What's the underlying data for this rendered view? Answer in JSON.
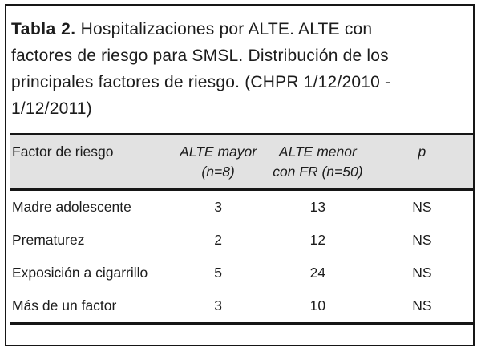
{
  "title": {
    "label": "Tabla 2.",
    "lines": [
      " Hospitalizaciones por ALTE. ALTE con",
      "factores de riesgo para SMSL. Distribución de los",
      "principales factores de riesgo. (CHPR 1/12/2010 -",
      "1/12/2011)"
    ]
  },
  "table": {
    "columns": [
      {
        "line1": "Factor de riesgo",
        "line2": ""
      },
      {
        "line1": "ALTE mayor",
        "line2": "(n=8)"
      },
      {
        "line1": "ALTE menor",
        "line2": "con FR (n=50)"
      },
      {
        "line1": "p",
        "line2": ""
      }
    ],
    "rows": [
      {
        "factor": "Madre adolescente",
        "alte_mayor": "3",
        "alte_menor": "13",
        "p": "NS"
      },
      {
        "factor": "Prematurez",
        "alte_mayor": "2",
        "alte_menor": "12",
        "p": "NS"
      },
      {
        "factor": "Exposición a cigarrillo",
        "alte_mayor": "5",
        "alte_menor": "24",
        "p": "NS"
      },
      {
        "factor": "Más de un factor",
        "alte_mayor": "3",
        "alte_menor": "10",
        "p": "NS"
      }
    ]
  },
  "colors": {
    "header_background": "#e2e2e2",
    "border": "#161616",
    "text": "#1c1c1c",
    "page_background": "#ffffff"
  }
}
